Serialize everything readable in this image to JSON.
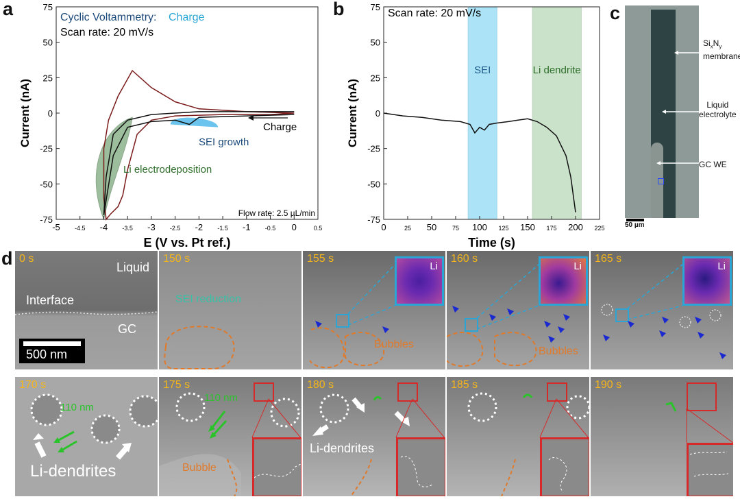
{
  "panels": {
    "a": "a",
    "b": "b",
    "c": "c",
    "d": "d"
  },
  "chart_data": [
    {
      "type": "line",
      "panel": "a",
      "title": "Cyclic Voltammetry: Charge",
      "title_prefix": "Cyclic Voltammetry:",
      "title_suffix": "Charge",
      "subtitle": "Scan rate: 20 mV/s",
      "xlabel": "E (V vs. Pt ref.)",
      "ylabel": "Current (nA)",
      "xlim": [
        -5,
        0.5
      ],
      "ylim": [
        -75,
        75
      ],
      "xticks": [
        "-5",
        "-4.5",
        "-4",
        "-3.5",
        "-3",
        "-2.5",
        "-2",
        "-1.5",
        "-1",
        "-0.5",
        "0",
        "0.5"
      ],
      "yticks": [
        "75",
        "50",
        "25",
        "0",
        "-25",
        "-50",
        "-75"
      ],
      "annotations": {
        "sei": "SEI growth",
        "li": "Li electrodeposition",
        "charge": "Charge",
        "flow": "Flow rate: 2.5 µL/min"
      },
      "series": [
        {
          "name": "CV dark red",
          "x": [
            0,
            -0.5,
            -1.5,
            -2.5,
            -3.0,
            -3.3,
            -3.5,
            -3.6,
            -3.7,
            -3.85,
            -3.95,
            -4.0,
            -4.0,
            -3.9,
            -3.7,
            -3.4,
            -3.0,
            -2.5,
            -2.0,
            -1.0,
            0
          ],
          "y": [
            0,
            -1,
            -1,
            -2,
            -5,
            -15,
            -40,
            -58,
            -66,
            -71,
            -75,
            -60,
            -25,
            -5,
            12,
            30,
            18,
            8,
            3,
            1,
            0
          ]
        },
        {
          "name": "CV black",
          "x": [
            0,
            -1.0,
            -2.0,
            -2.2,
            -2.5,
            -3.0,
            -3.5,
            -3.8,
            -4.0,
            -3.95,
            -3.8,
            -3.5,
            -3.0,
            -2.5,
            -2.0,
            -1.0,
            0
          ],
          "y": [
            -1,
            -2,
            -3,
            -8,
            -5,
            -6,
            -10,
            -30,
            -72,
            -45,
            -15,
            -5,
            -1,
            0,
            1,
            1,
            1
          ]
        }
      ]
    },
    {
      "type": "line",
      "panel": "b",
      "subtitle": "Scan rate: 20 mV/s",
      "xlabel": "Time (s)",
      "ylabel": "Current (nA)",
      "xlim": [
        0,
        225
      ],
      "ylim": [
        -75,
        75
      ],
      "xticks": [
        "0",
        "25",
        "50",
        "75",
        "100",
        "125",
        "150",
        "175",
        "200",
        "225"
      ],
      "yticks": [
        "75",
        "50",
        "25",
        "0",
        "-25",
        "-50",
        "-75"
      ],
      "regions": [
        {
          "label": "SEI",
          "from": 88,
          "to": 118
        },
        {
          "label": "Li dendrite",
          "from": 155,
          "to": 206
        }
      ],
      "series": [
        {
          "name": "current",
          "x": [
            0,
            20,
            40,
            60,
            80,
            90,
            95,
            100,
            105,
            110,
            118,
            130,
            140,
            150,
            160,
            170,
            180,
            190,
            195,
            198,
            200
          ],
          "y": [
            0,
            -2,
            -3,
            -5,
            -6,
            -8,
            -14,
            -10,
            -12,
            -8,
            -7,
            -6,
            -5,
            -4,
            -6,
            -10,
            -16,
            -30,
            -45,
            -60,
            -70
          ]
        }
      ]
    }
  ],
  "panel_c": {
    "label1_main": "Si",
    "label1_sub1": "x",
    "label1_mid": "N",
    "label1_sub2": "y",
    "label1_line2": "membrane",
    "label2": "Liquid electrolyte",
    "label2_l1": "Liquid",
    "label2_l2": "electrolyte",
    "label3": "GC WE",
    "scale": "50 µm"
  },
  "panel_d": {
    "row1": [
      {
        "time": "0 s",
        "labels": [
          "Liquid",
          "Interface",
          "GC"
        ],
        "scale": "500 nm"
      },
      {
        "time": "150 s",
        "labels": [
          "SEI reduction"
        ]
      },
      {
        "time": "155 s",
        "inset": "Li",
        "labels": [
          "Bubbles"
        ]
      },
      {
        "time": "160 s",
        "inset": "Li",
        "labels": [
          "Bubbles"
        ]
      },
      {
        "time": "165 s",
        "inset": "Li"
      }
    ],
    "row2": [
      {
        "time": "170 s",
        "labels": [
          "110 nm",
          "Li-dendrites"
        ]
      },
      {
        "time": "175 s",
        "labels": [
          "110 nm",
          "Bubble"
        ]
      },
      {
        "time": "180 s",
        "labels": [
          "Li-dendrites"
        ]
      },
      {
        "time": "185 s"
      },
      {
        "time": "190 s"
      }
    ]
  },
  "colors": {
    "accent_blue": "#1c5a8a",
    "sei_cyan": "#5bc8ee",
    "li_green": "#2e6e2a",
    "dendrite_green": "#6aaa6a",
    "time_yellow": "#f5b51b",
    "bubble_orange": "#e07a2a",
    "red_box": "#d62a2a",
    "cyan_box": "#2aa6d6"
  }
}
